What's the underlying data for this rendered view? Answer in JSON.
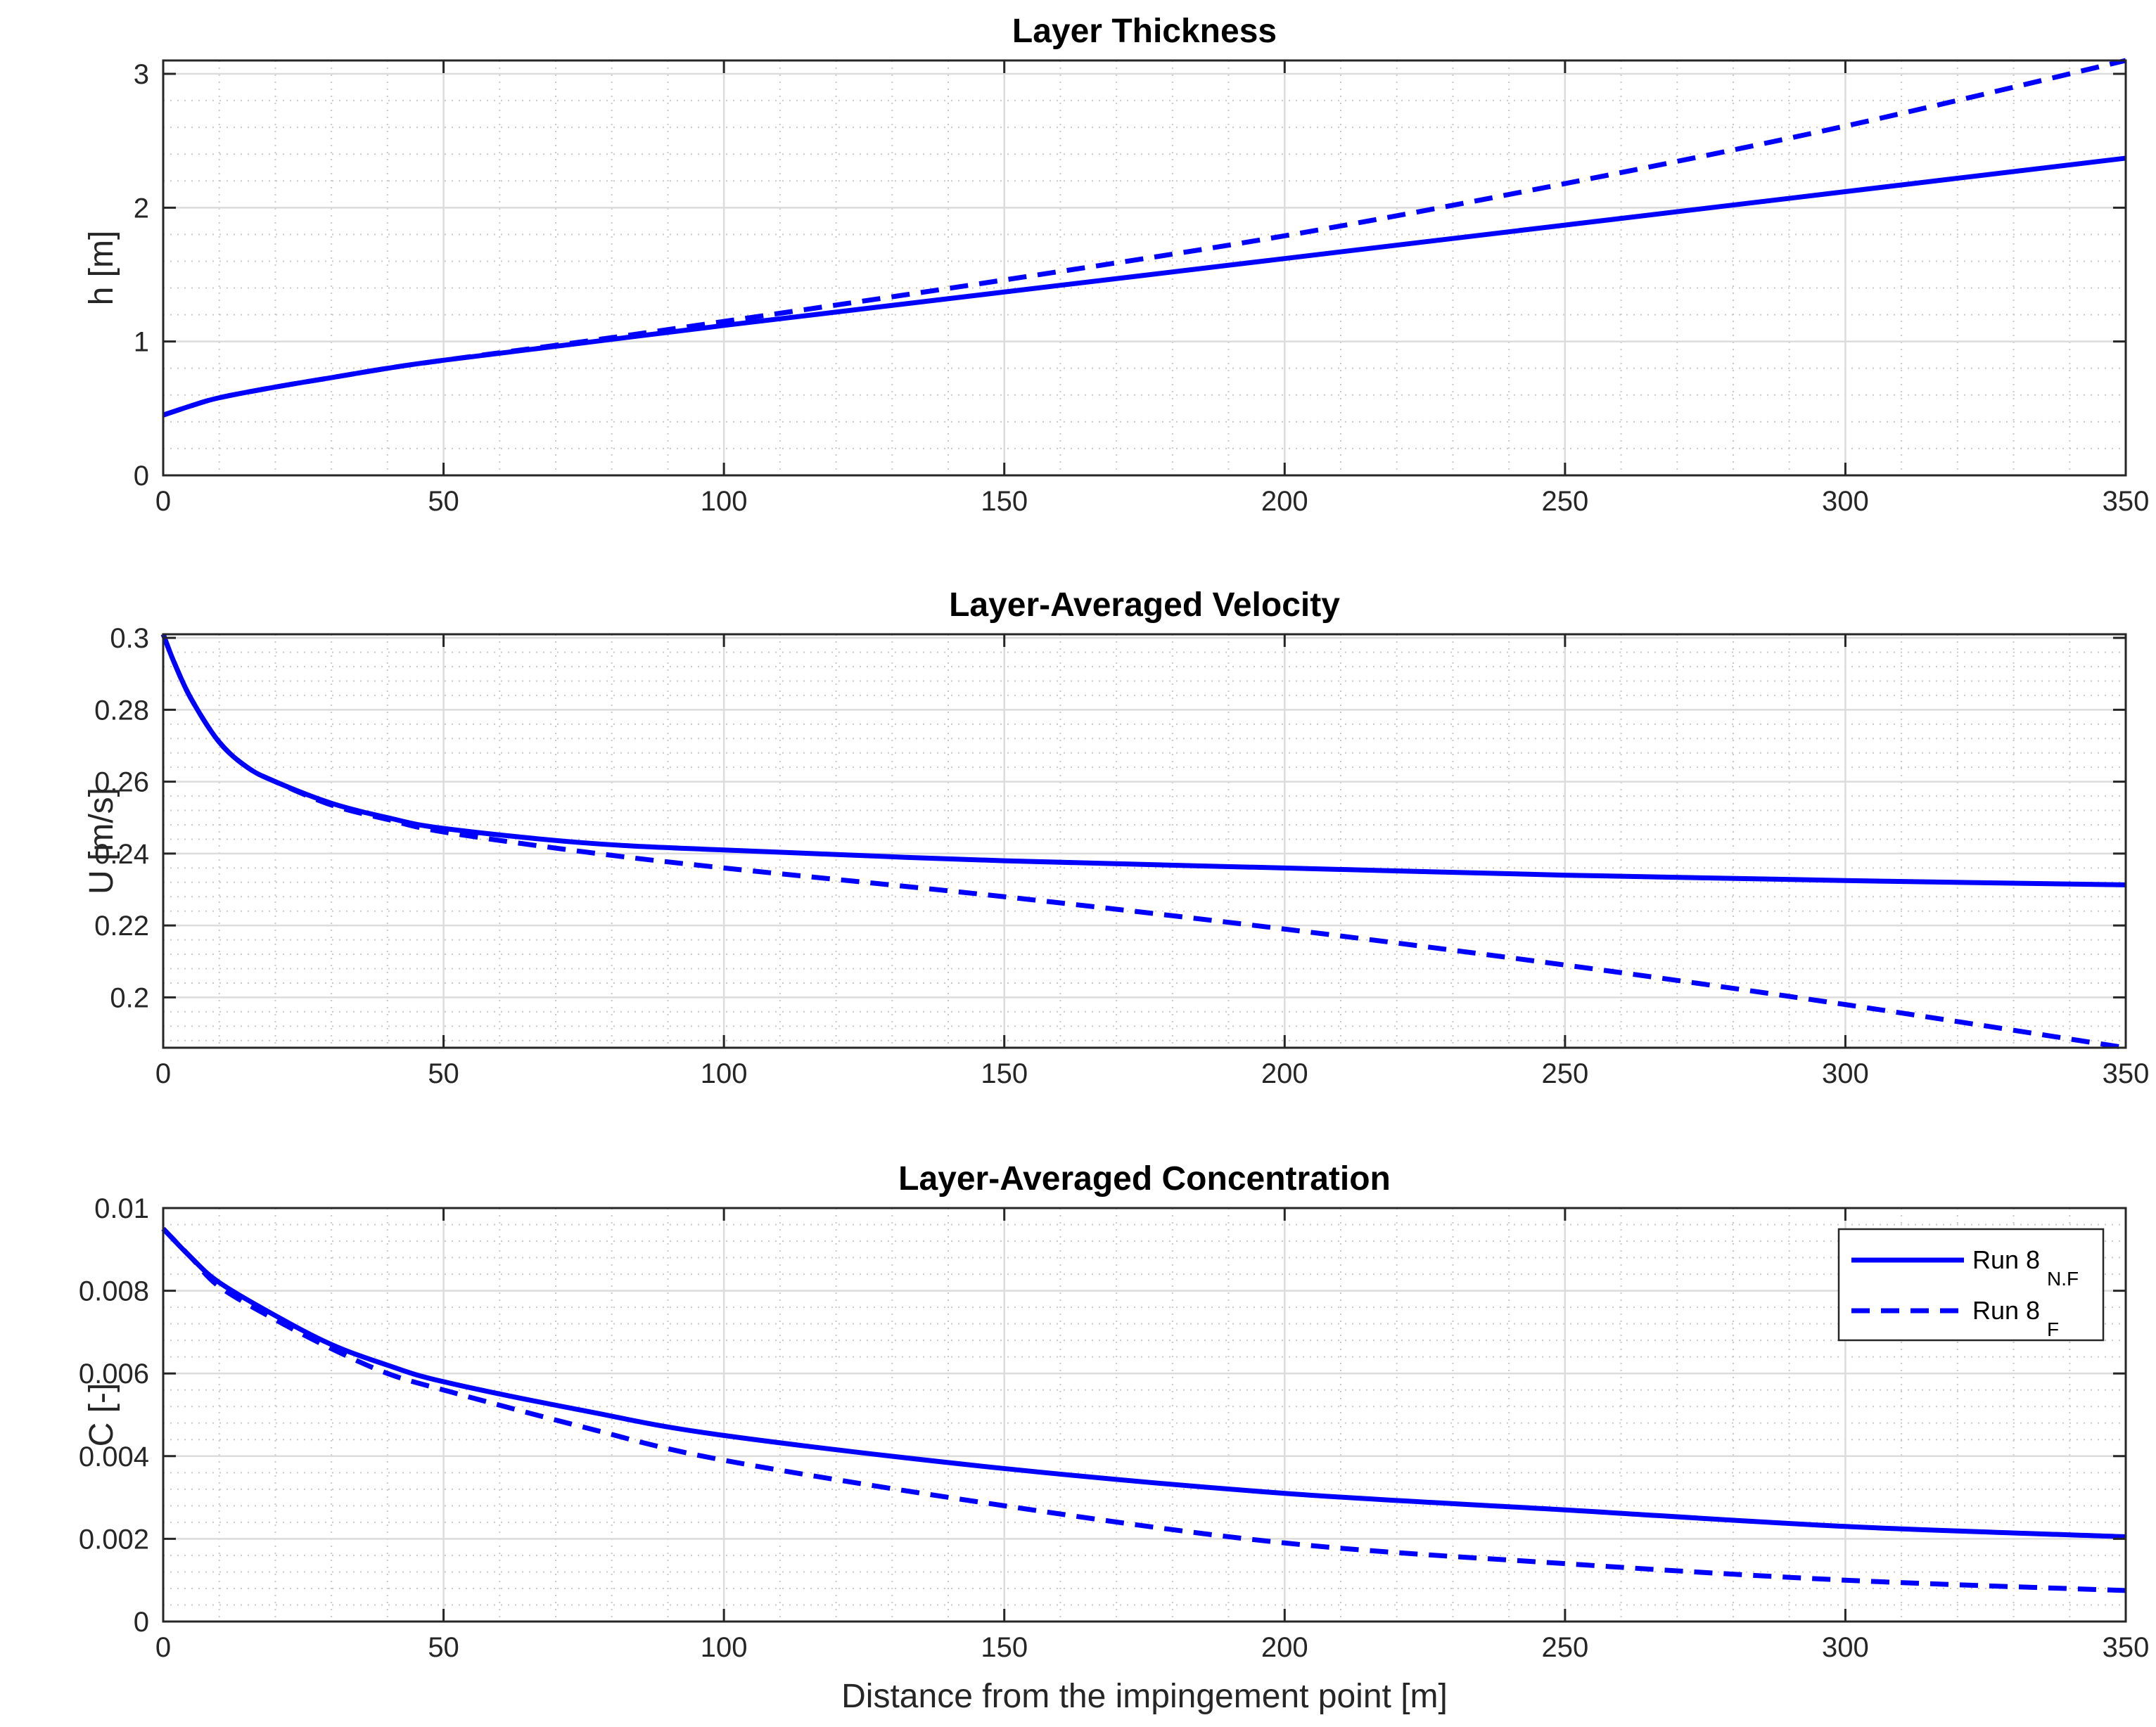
{
  "figure": {
    "xlabel": "Distance from the impingement point [m]",
    "line_color": "#0000ff"
  },
  "legend": {
    "entries": [
      {
        "label": "Run 8",
        "subscript": "N.F",
        "style": "solid"
      },
      {
        "label": "Run 8",
        "subscript": "F",
        "style": "dashed"
      }
    ]
  },
  "chart_data": [
    {
      "type": "line",
      "title": "Layer Thickness",
      "ylabel": "h [m]",
      "xlabel": "",
      "xlim": [
        0,
        350
      ],
      "ylim": [
        0,
        3.1
      ],
      "xticks": [
        0,
        50,
        100,
        150,
        200,
        250,
        300,
        350
      ],
      "xtick_labels": [
        "0",
        "50",
        "100",
        "150",
        "200",
        "250",
        "300",
        "350"
      ],
      "yticks": [
        0,
        1,
        2,
        3
      ],
      "ytick_labels": [
        "0",
        "1",
        "2",
        "3"
      ],
      "grid": true,
      "minor_grid": true,
      "x": [
        0,
        5,
        10,
        20,
        30,
        40,
        50,
        75,
        100,
        150,
        200,
        250,
        300,
        350
      ],
      "series": [
        {
          "name": "Run 8 N.F",
          "style": "solid",
          "values": [
            0.45,
            0.52,
            0.58,
            0.66,
            0.73,
            0.8,
            0.86,
            0.99,
            1.12,
            1.37,
            1.62,
            1.87,
            2.12,
            2.37
          ]
        },
        {
          "name": "Run 8 F",
          "style": "dashed",
          "values": [
            0.45,
            0.52,
            0.58,
            0.66,
            0.73,
            0.8,
            0.86,
            1.0,
            1.15,
            1.46,
            1.79,
            2.18,
            2.61,
            3.1
          ]
        }
      ]
    },
    {
      "type": "line",
      "title": "Layer-Averaged Velocity",
      "ylabel": "U [m/s]",
      "xlabel": "",
      "xlim": [
        0,
        350
      ],
      "ylim": [
        0.186,
        0.301
      ],
      "xticks": [
        0,
        50,
        100,
        150,
        200,
        250,
        300,
        350
      ],
      "xtick_labels": [
        "0",
        "50",
        "100",
        "150",
        "200",
        "250",
        "300",
        "350"
      ],
      "yticks": [
        0.2,
        0.22,
        0.24,
        0.26,
        0.28,
        0.3
      ],
      "ytick_labels": [
        "0.2",
        "0.22",
        "0.24",
        "0.26",
        "0.28",
        "0.3"
      ],
      "grid": true,
      "minor_grid": true,
      "x": [
        0,
        2,
        5,
        10,
        15,
        20,
        30,
        40,
        50,
        75,
        100,
        150,
        200,
        250,
        300,
        350
      ],
      "series": [
        {
          "name": "Run 8 N.F",
          "style": "solid",
          "values": [
            0.301,
            0.293,
            0.283,
            0.271,
            0.264,
            0.26,
            0.254,
            0.25,
            0.247,
            0.243,
            0.241,
            0.238,
            0.236,
            0.234,
            0.2325,
            0.2313
          ]
        },
        {
          "name": "Run 8 F",
          "style": "dashed",
          "values": [
            0.301,
            0.293,
            0.283,
            0.271,
            0.264,
            0.26,
            0.2535,
            0.2495,
            0.246,
            0.2405,
            0.236,
            0.228,
            0.219,
            0.209,
            0.198,
            0.186
          ]
        }
      ]
    },
    {
      "type": "line",
      "title": "Layer-Averaged Concentration",
      "ylabel": "C [-]",
      "xlabel": "Distance from the impingement point [m]",
      "xlim": [
        0,
        350
      ],
      "ylim": [
        0,
        0.01
      ],
      "xticks": [
        0,
        50,
        100,
        150,
        200,
        250,
        300,
        350
      ],
      "xtick_labels": [
        "0",
        "50",
        "100",
        "150",
        "200",
        "250",
        "300",
        "350"
      ],
      "yticks": [
        0,
        0.002,
        0.004,
        0.006,
        0.008,
        0.01
      ],
      "ytick_labels": [
        "0",
        "0.002",
        "0.004",
        "0.006",
        "0.008",
        "0.01"
      ],
      "grid": true,
      "minor_grid": true,
      "legend_position": "top-right",
      "x": [
        0,
        5,
        10,
        20,
        30,
        40,
        50,
        75,
        100,
        150,
        200,
        250,
        300,
        350
      ],
      "series": [
        {
          "name": "Run 8 N.F",
          "style": "solid",
          "values": [
            0.0095,
            0.0088,
            0.0082,
            0.0074,
            0.0067,
            0.0062,
            0.0058,
            0.0051,
            0.0045,
            0.0037,
            0.0031,
            0.0027,
            0.0023,
            0.00205
          ]
        },
        {
          "name": "Run 8 F",
          "style": "dashed",
          "values": [
            0.0095,
            0.0088,
            0.0081,
            0.0073,
            0.0066,
            0.006,
            0.0056,
            0.0047,
            0.0039,
            0.0028,
            0.0019,
            0.0014,
            0.001,
            0.00075
          ]
        }
      ]
    }
  ]
}
